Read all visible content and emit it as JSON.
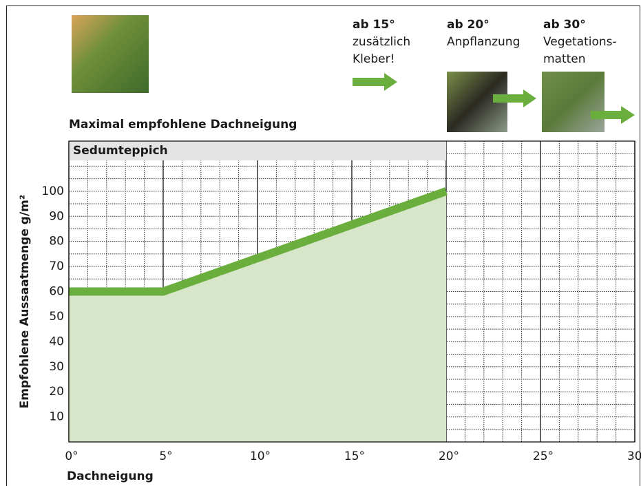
{
  "chart_data": {
    "type": "area",
    "title": "Maximal empfohlene Dachneigung",
    "panel_label": "Sedumteppich",
    "x_label": "Dachneigung",
    "y_label": "Empfohlene Aussaatmenge g/m²",
    "annotations": [
      {
        "title": "ab 15°",
        "lines": [
          "zusätzlich",
          "Kleber!"
        ]
      },
      {
        "title": "ab 20°",
        "lines": [
          "Anpflanzung"
        ]
      },
      {
        "title": "ab 30°",
        "lines": [
          "Vegetations-",
          "matten"
        ]
      }
    ],
    "series": [
      {
        "name": "Sedumteppich",
        "color": "#6aae3e",
        "fill": "#d7e6c9",
        "x": [
          0,
          5,
          20
        ],
        "values": [
          60,
          60,
          100
        ]
      }
    ],
    "xlim": [
      0,
      30
    ],
    "xticks": [
      {
        "value": 0,
        "label": "0°"
      },
      {
        "value": 5,
        "label": "5°"
      },
      {
        "value": 10,
        "label": "10°"
      },
      {
        "value": 15,
        "label": "15°"
      },
      {
        "value": 20,
        "label": "20°"
      },
      {
        "value": 25,
        "label": "25°"
      },
      {
        "value": 30,
        "label": "30°"
      }
    ],
    "x_minor_ticks": [
      1,
      2,
      3,
      4,
      6,
      7,
      8,
      9,
      11,
      12,
      13,
      14,
      16,
      17,
      18,
      19,
      21,
      22,
      23,
      24,
      26,
      27,
      28,
      29
    ],
    "ylim": [
      0,
      120
    ],
    "yticks": [
      10,
      20,
      30,
      40,
      50,
      60,
      70,
      80,
      90,
      100
    ],
    "y_minor_ticks": [
      5,
      10,
      15,
      20,
      25,
      30,
      35,
      40,
      45,
      50,
      55,
      60,
      65,
      70,
      75,
      80,
      85,
      90,
      95,
      100,
      105,
      110,
      115
    ],
    "grid": true
  }
}
